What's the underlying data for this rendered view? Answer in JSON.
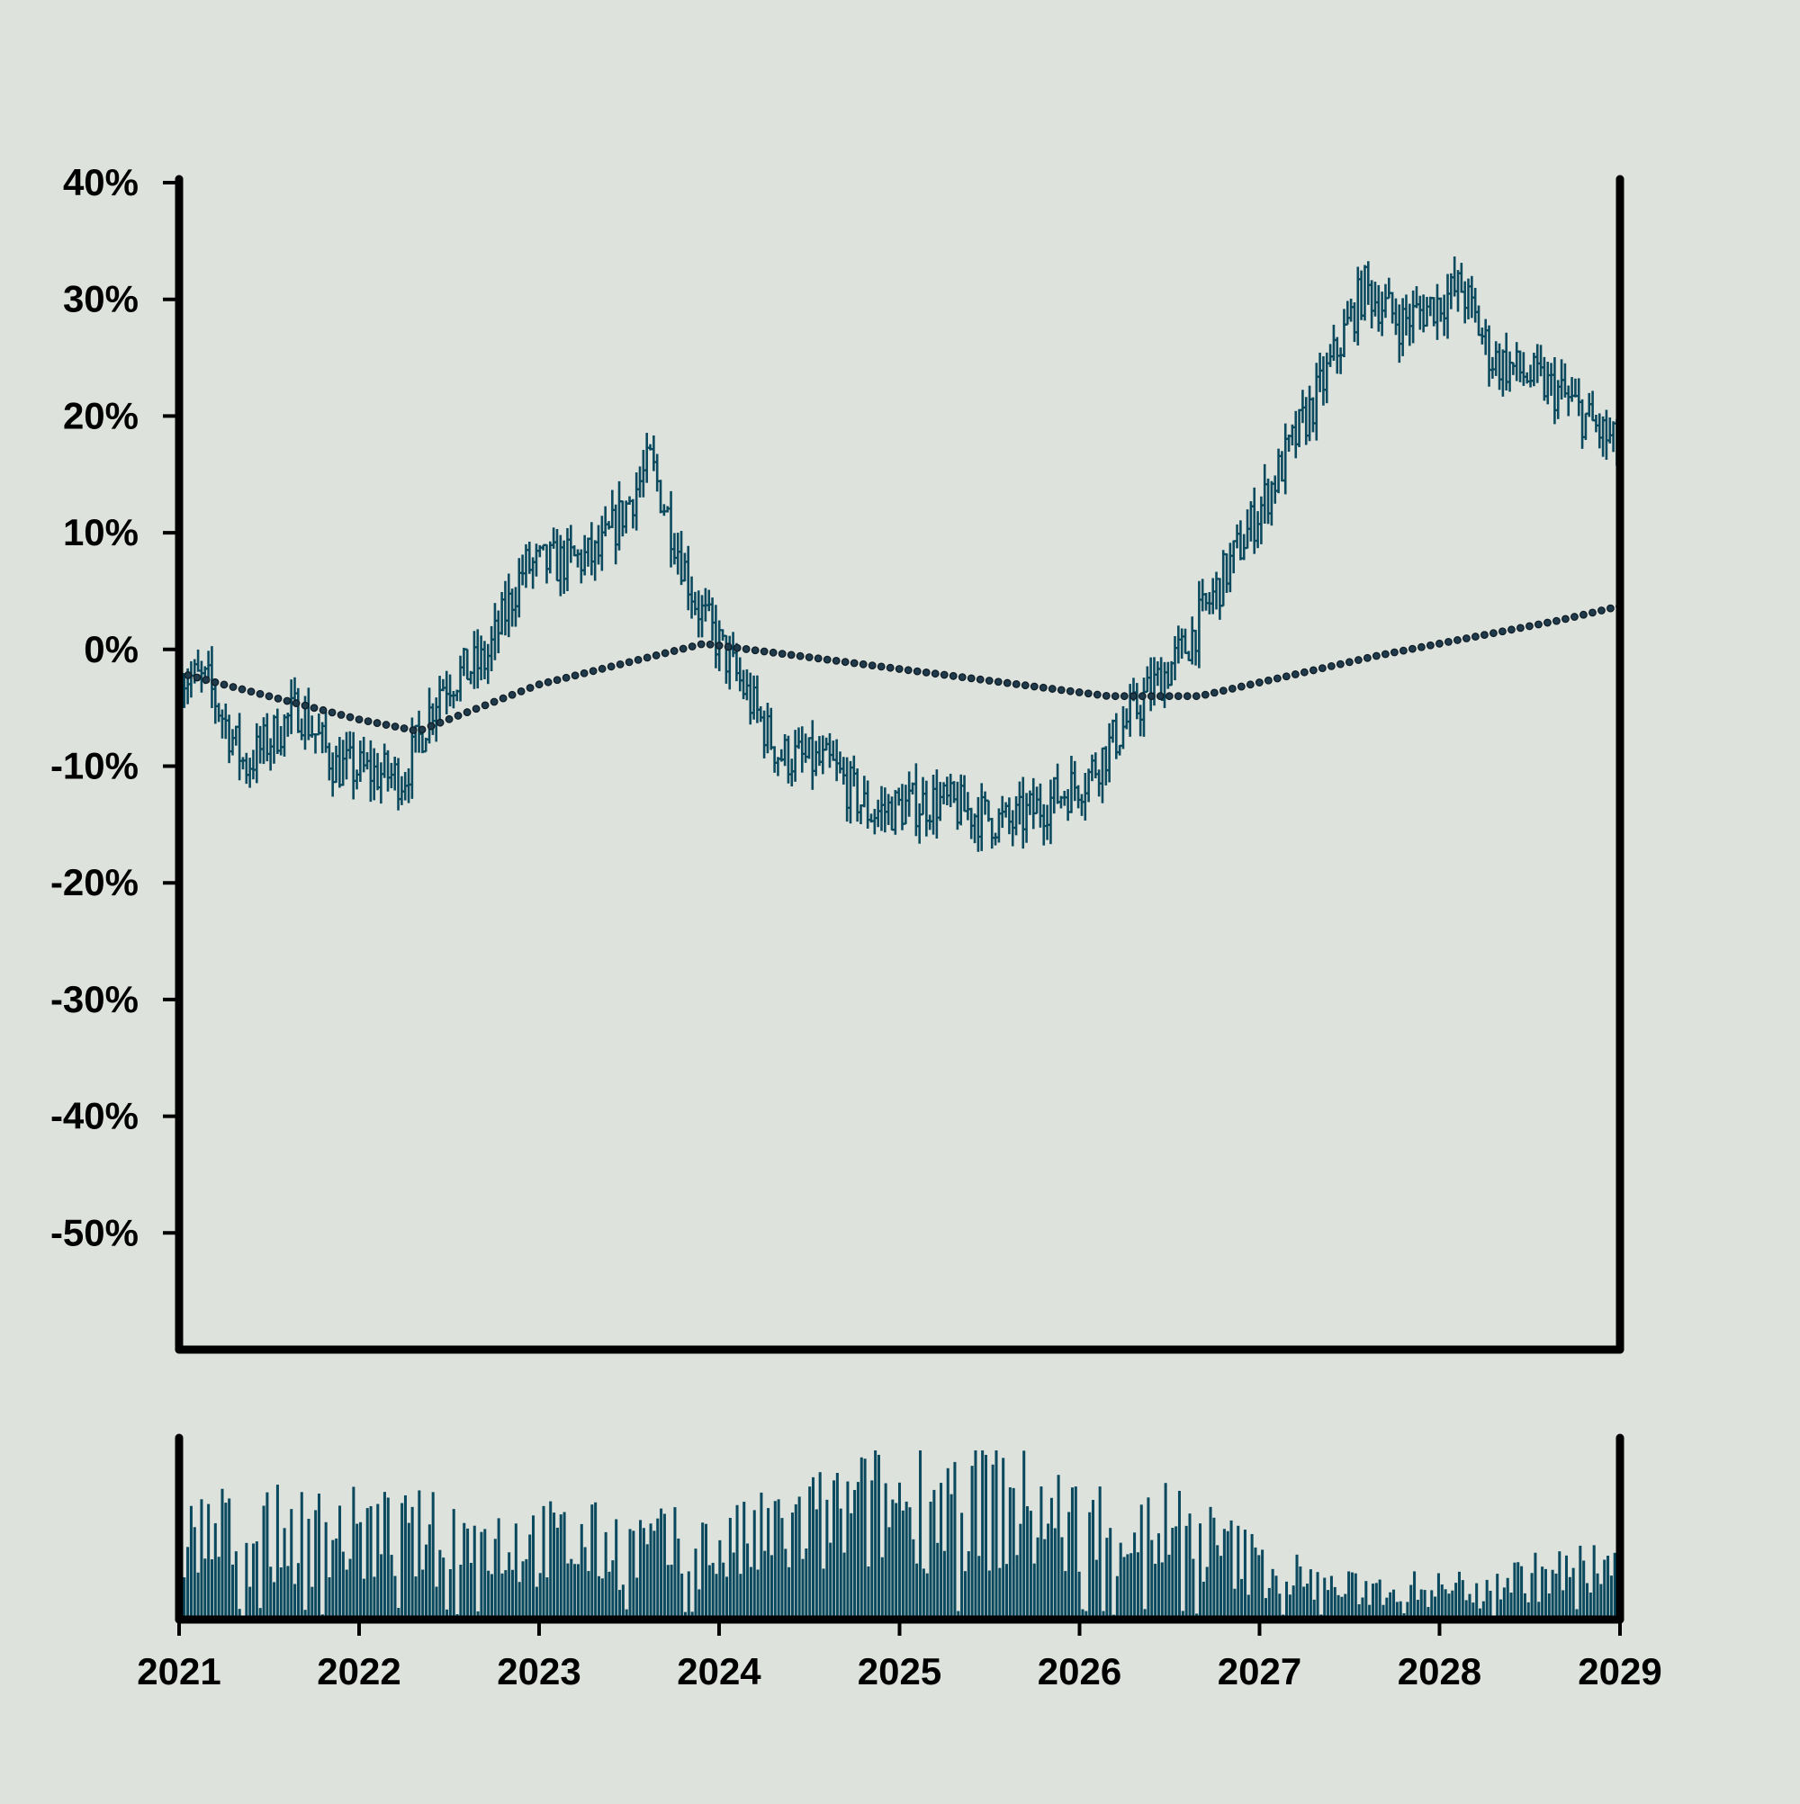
{
  "colors": {
    "background": "#dee2dc",
    "series": "#0b4a5e",
    "ma_fill": "#1f3a4a",
    "ma_stroke": "#0d1a24",
    "axis": "#000000"
  },
  "chart_data": [
    {
      "type": "ohlc",
      "title": "",
      "xlabel": "",
      "ylabel": "",
      "x_axis": {
        "type": "date",
        "range": [
          "2021-01-01",
          "2029-01-01"
        ],
        "tick_labels": [
          "2021",
          "2022",
          "2023",
          "2024",
          "2025",
          "2026",
          "2027",
          "2028",
          "2029"
        ]
      },
      "y_axis": {
        "range": [
          -60,
          40
        ],
        "unit": "%",
        "tick_values": [
          40,
          30,
          20,
          10,
          0,
          -10,
          -20,
          -30,
          -40,
          -50
        ],
        "tick_labels": [
          "40%",
          "30%",
          "20%",
          "10%",
          "0%",
          "-10%",
          "-20%",
          "-30%",
          "-40%",
          "-50%"
        ]
      },
      "grid": false,
      "legend": "none",
      "series": [
        {
          "style": "ohlc-bars",
          "keypoints": [
            [
              "2021-01-01",
              -2
            ],
            [
              "2021-03-01",
              -3
            ],
            [
              "2021-05-15",
              -10
            ],
            [
              "2021-09-01",
              -5
            ],
            [
              "2021-11-15",
              -10
            ],
            [
              "2022-04-01",
              -11
            ],
            [
              "2022-06-15",
              -3
            ],
            [
              "2022-09-15",
              -1
            ],
            [
              "2022-12-01",
              7
            ],
            [
              "2023-05-01",
              8
            ],
            [
              "2023-08-15",
              16
            ],
            [
              "2023-11-15",
              4
            ],
            [
              "2024-02-15",
              -3
            ],
            [
              "2024-05-01",
              -9
            ],
            [
              "2024-08-15",
              -10
            ],
            [
              "2024-11-01",
              -14
            ],
            [
              "2025-03-15",
              -13
            ],
            [
              "2025-08-15",
              -15
            ],
            [
              "2026-01-15",
              -11
            ],
            [
              "2026-05-15",
              -4
            ],
            [
              "2026-08-01",
              0
            ],
            [
              "2027-01-01",
              12
            ],
            [
              "2027-05-01",
              22
            ],
            [
              "2027-08-01",
              31
            ],
            [
              "2027-10-15",
              28
            ],
            [
              "2028-02-15",
              31
            ],
            [
              "2028-04-15",
              25
            ],
            [
              "2028-09-01",
              22
            ],
            [
              "2028-12-31",
              17
            ]
          ]
        },
        {
          "style": "moving-average-dots",
          "keypoints": [
            [
              "2021-01-01",
              -2
            ],
            [
              "2021-04-01",
              -3
            ],
            [
              "2022-01-01",
              -6
            ],
            [
              "2022-05-01",
              -7
            ],
            [
              "2023-01-01",
              -3
            ],
            [
              "2023-12-01",
              0.5
            ],
            [
              "2024-06-01",
              -0.5
            ],
            [
              "2025-03-01",
              -2
            ],
            [
              "2026-03-01",
              -4
            ],
            [
              "2026-09-01",
              -4
            ],
            [
              "2027-09-01",
              -0.5
            ],
            [
              "2028-09-01",
              2.5
            ],
            [
              "2028-12-31",
              3.7
            ]
          ]
        }
      ]
    },
    {
      "type": "bar",
      "title": "",
      "xlabel": "",
      "ylabel": "",
      "x_axis": {
        "type": "date",
        "range": [
          "2021-01-01",
          "2029-01-01"
        ]
      },
      "y_axis": {
        "range": [
          0,
          1
        ],
        "tick_labels": []
      },
      "grid": false,
      "legend": "none",
      "series": [
        {
          "style": "volume-bars",
          "level_keypoints": [
            [
              "2021-01-01",
              0.55
            ],
            [
              "2022-01-01",
              0.55
            ],
            [
              "2023-01-01",
              0.5
            ],
            [
              "2024-01-01",
              0.45
            ],
            [
              "2024-12-01",
              0.75
            ],
            [
              "2025-06-01",
              0.8
            ],
            [
              "2026-01-01",
              0.6
            ],
            [
              "2026-07-01",
              0.6
            ],
            [
              "2027-01-01",
              0.35
            ],
            [
              "2027-06-01",
              0.2
            ],
            [
              "2028-01-01",
              0.2
            ],
            [
              "2028-12-31",
              0.35
            ]
          ]
        }
      ]
    }
  ]
}
